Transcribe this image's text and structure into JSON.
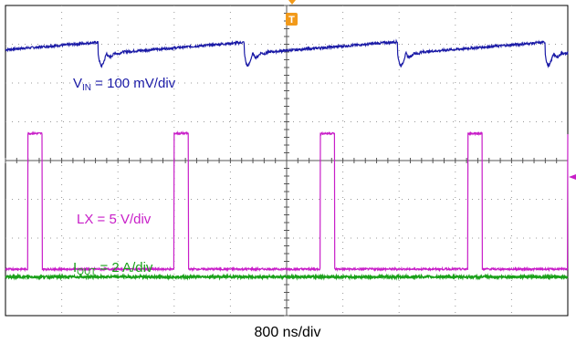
{
  "chart_data": {
    "type": "line",
    "title": "",
    "xlabel": "800 ns/div",
    "ylabel": "",
    "grid": true,
    "divisions": {
      "x": 10,
      "y": 8
    },
    "time_per_div_ns": 800,
    "x_range_ns": [
      -4000,
      4000
    ],
    "trigger_marker": "T",
    "series": [
      {
        "key": "vin",
        "label_main": "V",
        "label_sub": "IN",
        "label_rest": " = 100 mV/div",
        "color": "#1a1aa6",
        "scale": "100 mV/div",
        "switch_edges_ns": [
          -2680,
          -600,
          1580,
          3680
        ],
        "waveform": "input ripple: slow ramp with ringing dip at each switching edge"
      },
      {
        "key": "lx",
        "label_main": "LX = 5 V/div",
        "label_sub": "",
        "label_rest": "",
        "color": "#c81ec8",
        "scale": "5 V/div",
        "pulse_start_ns": [
          -3680,
          -1600,
          480,
          2580,
          4000
        ],
        "pulse_width_ns": 200,
        "high_level_div": 4.7,
        "low_level_div": 1.2,
        "waveform": "switch node: narrow high pulses on a low baseline"
      },
      {
        "key": "iout",
        "label_main": "I",
        "label_sub": "OUT",
        "label_rest": " = 2 A/div",
        "color": "#1aa01a",
        "scale": "2 A/div",
        "level_div": 1.0,
        "waveform": "flat DC current with small noise"
      }
    ]
  }
}
